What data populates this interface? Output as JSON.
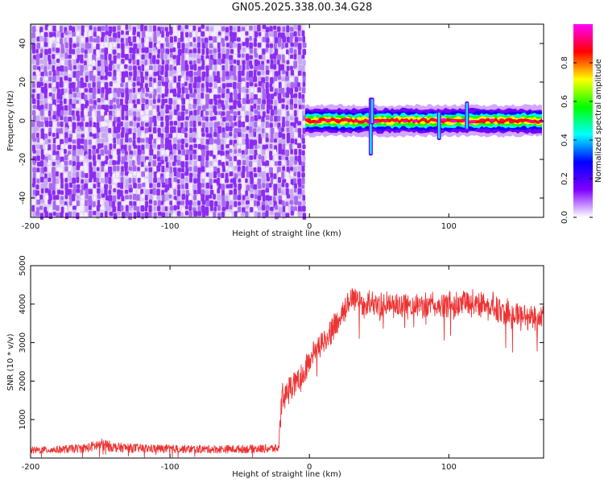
{
  "title": "GN05.2025.338.00.34.G28",
  "chart_data": [
    {
      "type": "heatmap",
      "xlabel": "Height of straight line (km)",
      "ylabel": "Frequency (Hz)",
      "xlim": [
        -200,
        168
      ],
      "ylim": [
        -50,
        50
      ],
      "xticks": [
        -200,
        -100,
        0,
        100
      ],
      "yticks": [
        -40,
        -20,
        0,
        20,
        40
      ],
      "regions": [
        {
          "name": "noise",
          "x_range": [
            -200,
            -3
          ],
          "y_range": [
            -50,
            50
          ],
          "amplitude": 0.25
        },
        {
          "name": "signal_band",
          "x_range": [
            -3,
            168
          ],
          "y_center": 0,
          "y_halfwidth": 4,
          "peak_amplitude": 0.95
        }
      ],
      "spikes": [
        {
          "x": 44,
          "y_range": [
            -18,
            12
          ]
        },
        {
          "x": 45,
          "y_range": [
            -2,
            12
          ]
        },
        {
          "x": 93,
          "y_range": [
            -10,
            5
          ]
        },
        {
          "x": 113,
          "y_range": [
            -5,
            10
          ]
        }
      ],
      "colorbar": {
        "label": "Normalized spectral amplitude",
        "range": [
          0,
          1
        ],
        "ticks": [
          0.0,
          0.2,
          0.4,
          0.6,
          0.8
        ],
        "tick_labels": [
          "0.0",
          "0.2",
          "0.4",
          "0.6",
          "0.8"
        ],
        "colors": [
          "#ffffff",
          "#8000ff",
          "#0000ff",
          "#00ffff",
          "#00ff00",
          "#ffff00",
          "#ff0000",
          "#ff00ff"
        ]
      },
      "grid": false
    },
    {
      "type": "line",
      "xlabel": "Height of straight line (km)",
      "ylabel": "SNR (10 * v/v)",
      "xlim": [
        -200,
        168
      ],
      "ylim": [
        0,
        5000
      ],
      "xticks": [
        -200,
        -100,
        0,
        100
      ],
      "yticks": [
        1000,
        2000,
        3000,
        4000,
        5000
      ],
      "color": "#ee3333",
      "series": [
        {
          "x": [
            -200,
            -180,
            -160,
            -150,
            -145,
            -140,
            -120,
            -100,
            -80,
            -60,
            -40,
            -22,
            -21,
            -20,
            -15,
            -10,
            -5,
            0,
            5,
            10,
            15,
            20,
            25,
            28,
            30,
            40,
            60,
            80,
            100,
            110,
            120,
            130,
            140,
            150,
            160,
            168
          ],
          "y": [
            200,
            220,
            260,
            350,
            330,
            280,
            250,
            240,
            230,
            230,
            240,
            250,
            800,
            1500,
            1800,
            1950,
            2150,
            2550,
            2850,
            3050,
            3300,
            3500,
            3750,
            4100,
            4200,
            4000,
            3950,
            3950,
            3950,
            4000,
            4050,
            3950,
            3800,
            3700,
            3650,
            3700
          ]
        }
      ],
      "noise_amplitude": 350,
      "grid": false
    }
  ]
}
